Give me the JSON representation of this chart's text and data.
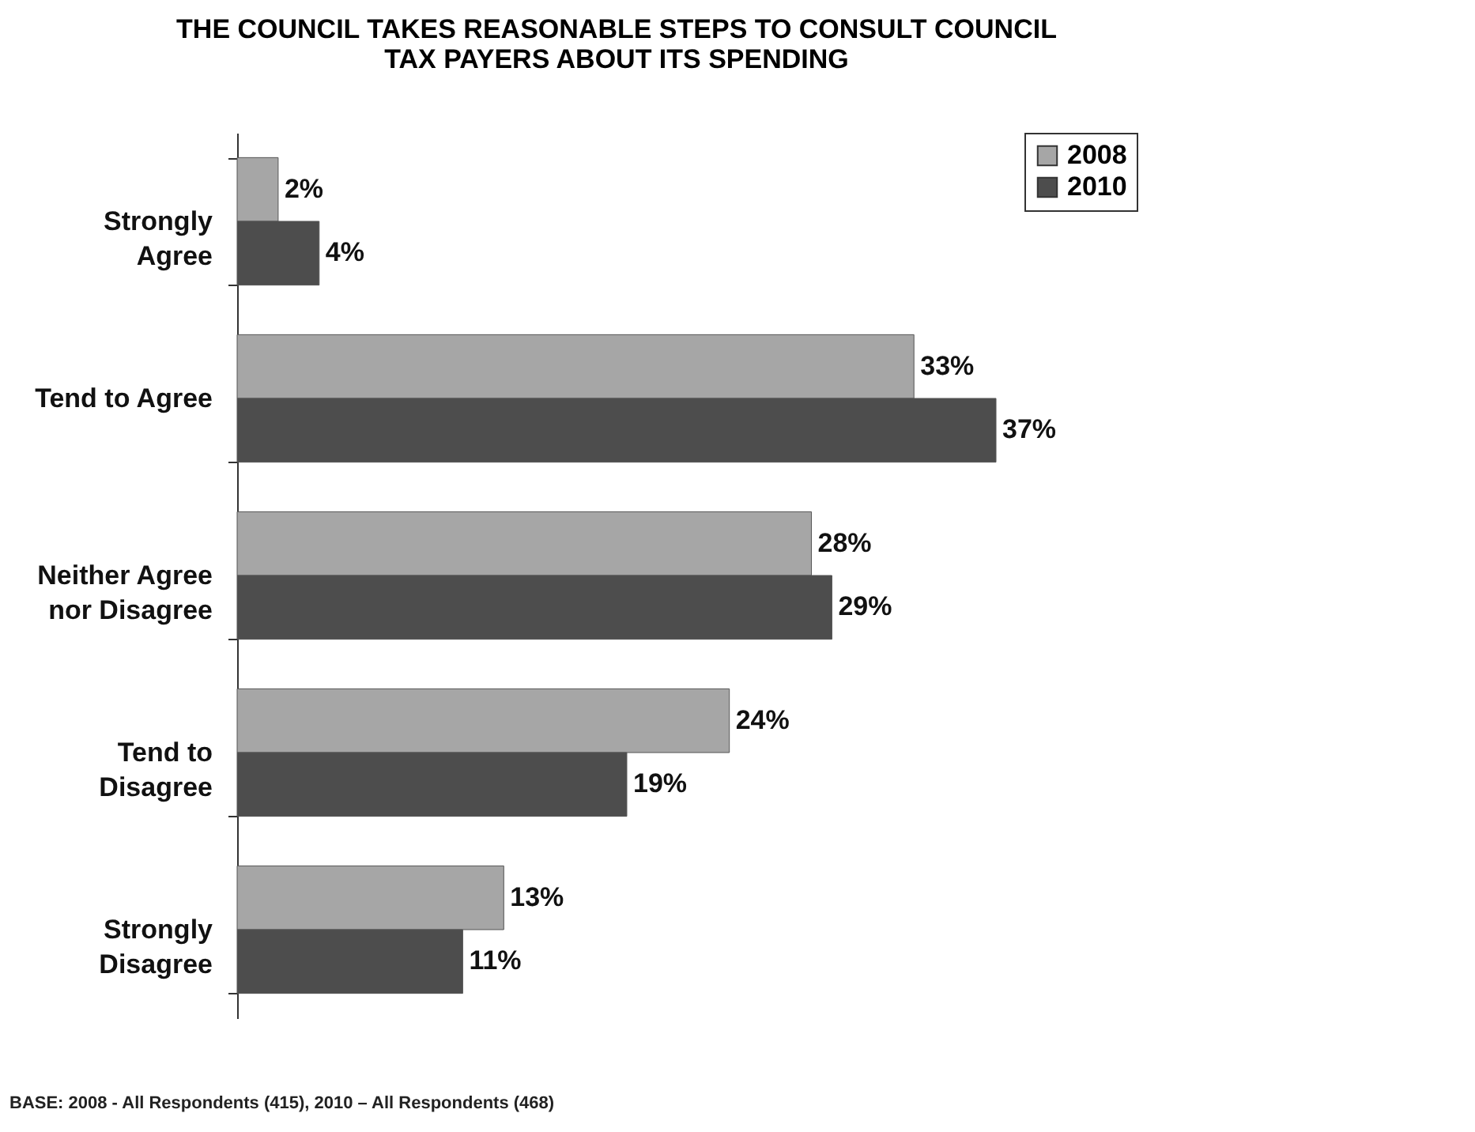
{
  "chart_data": {
    "type": "bar",
    "orientation": "horizontal",
    "title": "THE COUNCIL TAKES REASONABLE STEPS TO CONSULT COUNCIL TAX PAYERS ABOUT ITS SPENDING",
    "categories": [
      "Strongly Agree",
      "Tend to Agree",
      "Neither Agree nor Disagree",
      "Tend to Disagree",
      "Strongly Disagree"
    ],
    "series": [
      {
        "name": "2008",
        "color": "#a6a6a6",
        "values": [
          2,
          33,
          28,
          24,
          13
        ],
        "value_labels": [
          "2%",
          "33%",
          "28%",
          "24%",
          "13%"
        ]
      },
      {
        "name": "2010",
        "color": "#4d4d4d",
        "values": [
          4,
          37,
          29,
          19,
          11
        ],
        "value_labels": [
          "4%",
          "37%",
          "29%",
          "19%",
          "11%"
        ]
      }
    ],
    "legend": "right",
    "grid": false,
    "annotations": [
      "BASE: 2008 - All Respondents (415), 2010 – All Respondents (468)"
    ]
  }
}
